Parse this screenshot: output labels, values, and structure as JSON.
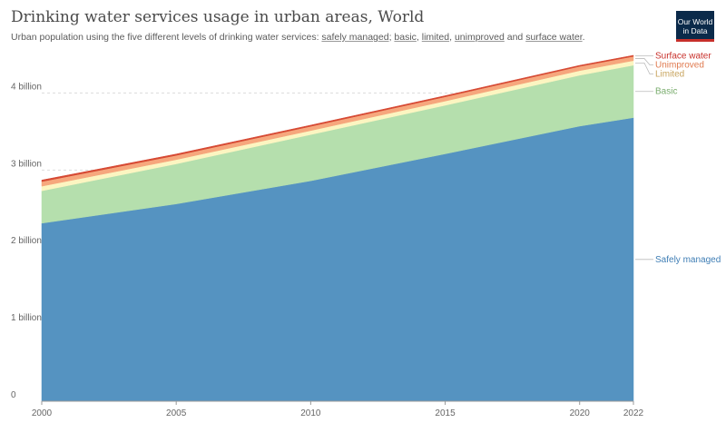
{
  "header": {
    "title": "Drinking water services usage in urban areas, World",
    "subtitle": {
      "prefix": "Urban population using the five different levels of drinking water services: ",
      "terms": [
        "safely managed",
        "basic",
        "limited",
        "unimproved",
        "surface water"
      ],
      "seps": [
        "; ",
        ", ",
        ", ",
        " and ",
        "."
      ]
    }
  },
  "logo": {
    "line1": "Our World",
    "line2": "in Data",
    "bg_color": "#0b2a4a",
    "accent_color": "#c7302b"
  },
  "chart_data": {
    "type": "area",
    "stacked": true,
    "x": [
      2000,
      2005,
      2010,
      2015,
      2020,
      2022
    ],
    "x_ticks": [
      2000,
      2005,
      2010,
      2015,
      2020,
      2022
    ],
    "x_tick_labels": [
      "2000",
      "2005",
      "2010",
      "2015",
      "2020",
      "2022"
    ],
    "ylim": [
      0,
      4500000000
    ],
    "y_ticks": [
      0,
      1000000000,
      2000000000,
      3000000000,
      4000000000
    ],
    "y_tick_labels": [
      "0",
      "1 billion",
      "2 billion",
      "3 billion",
      "4 billion"
    ],
    "grid": "horizontal dashed",
    "legend": "right end labels",
    "series": [
      {
        "name": "Safely managed",
        "color": "#5593c1",
        "values": [
          2310000000,
          2560000000,
          2860000000,
          3210000000,
          3570000000,
          3680000000
        ]
      },
      {
        "name": "Basic",
        "color": "#b5dfad",
        "values": [
          420000000,
          520000000,
          600000000,
          630000000,
          660000000,
          680000000
        ]
      },
      {
        "name": "Limited",
        "color": "#fcf5c1",
        "values": [
          60000000,
          55000000,
          52000000,
          55000000,
          60000000,
          60000000
        ]
      },
      {
        "name": "Unimproved",
        "color": "#f6a77d",
        "values": [
          60000000,
          55000000,
          55000000,
          55000000,
          55000000,
          55000000
        ]
      },
      {
        "name": "Surface water",
        "color": "#d64933",
        "values": [
          20000000,
          18000000,
          16000000,
          15000000,
          14000000,
          14000000
        ]
      }
    ],
    "label_colors": [
      "#3f7eb5",
      "#7aad6e",
      "#c8a45e",
      "#e07a4f",
      "#c8302b"
    ]
  }
}
